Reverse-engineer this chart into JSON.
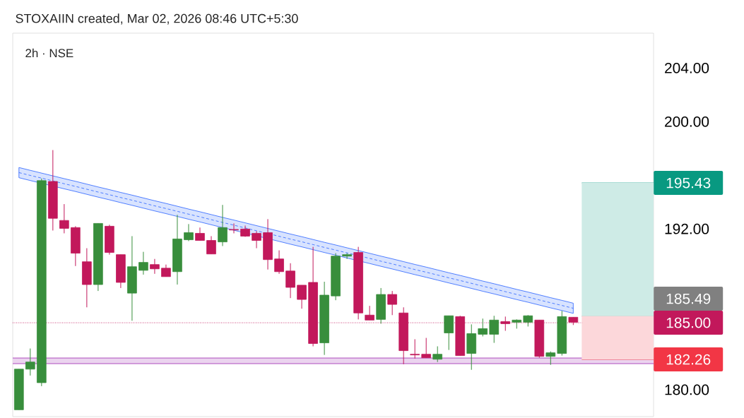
{
  "chart_data": {
    "type": "candlestick",
    "title": "STOXAIIN created, Mar 02, 2026 08:46 UTC+5:30",
    "subtitle": "2h · NSE",
    "categories": [
      null,
      null,
      null,
      null,
      null,
      null,
      null,
      null,
      null,
      null,
      null,
      null,
      null,
      null,
      null,
      null,
      null,
      null,
      null,
      null,
      null,
      null,
      null,
      null,
      null,
      null,
      null,
      null,
      null,
      null,
      null,
      null,
      null,
      null,
      null,
      null,
      null,
      null,
      null,
      null,
      null,
      null,
      null,
      null,
      null,
      null,
      null,
      null,
      null,
      null
    ],
    "ohlc": [
      [
        178.51,
        181.54,
        178.51,
        181.54
      ],
      [
        181.54,
        183.08,
        181.06,
        182.07
      ],
      [
        180.53,
        195.76,
        180.27,
        195.6
      ],
      [
        195.54,
        197.88,
        191.88,
        192.79
      ],
      [
        192.63,
        193.85,
        191.67,
        192.04
      ],
      [
        192.1,
        192.2,
        189.23,
        190.19
      ],
      [
        189.55,
        190.56,
        186.15,
        187.85
      ],
      [
        187.85,
        192.41,
        187.37,
        192.41
      ],
      [
        192.2,
        192.31,
        190.08,
        190.24
      ],
      [
        190.08,
        190.08,
        187.59,
        188.01
      ],
      [
        187.21,
        191.46,
        185.15,
        189.18
      ],
      [
        188.91,
        190.29,
        188.59,
        189.5
      ],
      [
        189.34,
        189.76,
        188.65,
        189.02
      ],
      [
        189.07,
        189.34,
        188.44,
        188.44
      ],
      [
        188.81,
        193.05,
        187.85,
        191.25
      ],
      [
        191.19,
        192.36,
        191.09,
        191.72
      ],
      [
        191.67,
        192.1,
        191.14,
        191.14
      ],
      [
        191.14,
        191.46,
        190.13,
        190.13
      ],
      [
        191.03,
        193.79,
        190.72,
        192.1
      ],
      [
        191.96,
        192.41,
        191.67,
        191.92
      ],
      [
        191.99,
        192.25,
        191.41,
        191.46
      ],
      [
        191.67,
        191.83,
        190.56,
        191.14
      ],
      [
        191.72,
        192.73,
        188.97,
        189.71
      ],
      [
        189.76,
        190.4,
        188.65,
        188.81
      ],
      [
        188.86,
        189.44,
        186.84,
        187.64
      ],
      [
        187.8,
        187.8,
        186.05,
        186.74
      ],
      [
        188.01,
        190.66,
        183.24,
        183.45
      ],
      [
        183.5,
        188.06,
        182.6,
        187.06
      ],
      [
        187.0,
        190.19,
        186.68,
        189.97
      ],
      [
        189.97,
        190.19,
        189.76,
        190.08
      ],
      [
        190.24,
        190.66,
        185.25,
        185.73
      ],
      [
        185.57,
        186.26,
        185.2,
        185.2
      ],
      [
        185.25,
        187.59,
        184.93,
        187.11
      ],
      [
        187.11,
        187.37,
        185.57,
        186.37
      ],
      [
        185.73,
        186.15,
        181.91,
        182.92
      ],
      [
        182.65,
        183.77,
        182.33,
        182.6
      ],
      [
        182.65,
        183.87,
        182.39,
        182.39
      ],
      [
        182.28,
        183.24,
        182.07,
        182.65
      ],
      [
        184.24,
        185.52,
        182.97,
        185.52
      ],
      [
        185.46,
        185.52,
        182.55,
        182.55
      ],
      [
        182.71,
        184.88,
        181.49,
        184.19
      ],
      [
        184.14,
        185.31,
        183.98,
        184.56
      ],
      [
        184.14,
        185.52,
        183.5,
        185.2
      ],
      [
        185.09,
        185.46,
        184.4,
        184.93
      ],
      [
        185.04,
        185.25,
        184.56,
        185.2
      ],
      [
        185.04,
        185.57,
        184.72,
        185.52
      ],
      [
        185.2,
        185.2,
        182.39,
        182.49
      ],
      [
        182.49,
        182.86,
        181.86,
        182.76
      ],
      [
        182.71,
        185.89,
        182.55,
        185.46
      ],
      [
        185.41,
        185.41,
        184.83,
        185.04
      ]
    ],
    "colors": [
      "#388e3c",
      "#388e3c",
      "#388e3c",
      "#c2185b",
      "#c2185b",
      "#c2185b",
      "#c2185b",
      "#388e3c",
      "#c2185b",
      "#c2185b",
      "#388e3c",
      "#388e3c",
      "#c2185b",
      "#c2185b",
      "#388e3c",
      "#388e3c",
      "#c2185b",
      "#c2185b",
      "#388e3c",
      "#c2185b",
      "#c2185b",
      "#c2185b",
      "#c2185b",
      "#c2185b",
      "#c2185b",
      "#c2185b",
      "#c2185b",
      "#388e3c",
      "#388e3c",
      "#388e3c",
      "#c2185b",
      "#c2185b",
      "#388e3c",
      "#c2185b",
      "#c2185b",
      "#c2185b",
      "#c2185b",
      "#388e3c",
      "#388e3c",
      "#c2185b",
      "#388e3c",
      "#388e3c",
      "#388e3c",
      "#c2185b",
      "#388e3c",
      "#388e3c",
      "#c2185b",
      "#388e3c",
      "#388e3c",
      "#c2185b"
    ],
    "ylim": [
      178,
      206.6
    ],
    "yticks": [
      {
        "value": 180,
        "label": "180.00"
      },
      {
        "value": 192,
        "label": "192.00"
      },
      {
        "value": 200,
        "label": "200.00"
      },
      {
        "value": 204,
        "label": "204.00"
      }
    ],
    "tick_labels": "y",
    "series": [
      {
        "type": "line",
        "color": "#2962ff",
        "line_style": "dashed",
        "values": [
          196.2,
          195.99,
          195.79,
          195.58,
          195.37,
          195.17,
          194.96,
          194.75,
          194.55,
          194.34,
          194.14,
          193.93,
          193.72,
          193.52,
          193.31,
          193.1,
          192.9,
          192.69,
          192.48,
          192.28,
          192.07,
          191.86,
          null,
          191.45,
          191.24,
          191.04,
          190.83,
          190.62,
          190.42,
          190.21,
          null,
          189.8,
          189.59,
          189.39,
          189.18,
          188.97,
          188.77,
          188.56,
          188.35,
          188.15,
          187.94,
          187.73,
          187.53,
          187.32,
          187.11,
          186.91,
          186.7,
          186.49,
          186.29,
          186.08
        ],
        "lower": [
          195.82,
          195.61,
          null,
          null,
          194.99,
          194.79,
          194.58,
          194.37,
          194.17,
          193.96,
          193.76,
          193.55,
          193.34,
          193.14,
          192.93,
          192.72,
          192.52,
          192.31,
          192.1,
          191.9,
          null,
          null,
          null,
          191.07,
          190.86,
          190.66,
          190.45,
          190.24,
          190.04,
          189.83,
          null,
          189.42,
          189.21,
          189.01,
          188.8,
          188.59,
          188.39,
          188.18,
          187.97,
          187.77,
          187.56,
          187.35,
          187.15,
          186.94,
          186.73,
          186.53,
          186.32,
          186.11,
          185.91,
          185.7
        ],
        "upper": [
          196.58,
          196.37,
          null,
          null,
          195.75,
          195.55,
          195.34,
          195.13,
          194.93,
          194.72,
          194.52,
          194.31,
          194.1,
          193.9,
          193.69,
          193.48,
          193.28,
          193.07,
          192.86,
          192.66,
          null,
          null,
          null,
          191.83,
          191.62,
          191.42,
          191.21,
          191.0,
          190.8,
          190.59,
          null,
          190.18,
          189.97,
          189.77,
          189.56,
          189.35,
          189.15,
          188.94,
          188.73,
          188.53,
          188.32,
          188.11,
          187.91,
          187.7,
          187.49,
          187.29,
          187.08,
          186.87,
          186.67,
          186.46
        ]
      }
    ],
    "bands": [
      {
        "axis": "y",
        "from": 181.95,
        "to": 182.37,
        "color": "#ebd4ef"
      }
    ],
    "ref_lines": [
      {
        "axis": "y",
        "value": 181.95,
        "color": "#9c27b0",
        "line_style": "solid"
      },
      {
        "axis": "y",
        "value": 182.37,
        "color": "#9c27b0",
        "line_style": "solid"
      },
      {
        "axis": "y",
        "value": 185.0,
        "label": "185.00",
        "color": "#c2185b",
        "line_style": "dotted"
      },
      {
        "axis": "y",
        "value": 195.43,
        "label": "195.43",
        "color": "#089981"
      },
      {
        "axis": "y",
        "value": 185.49,
        "label": "185.49",
        "color": "#808080"
      },
      {
        "axis": "y",
        "value": 182.26,
        "label": "182.26",
        "color": "#f23645"
      }
    ]
  }
}
